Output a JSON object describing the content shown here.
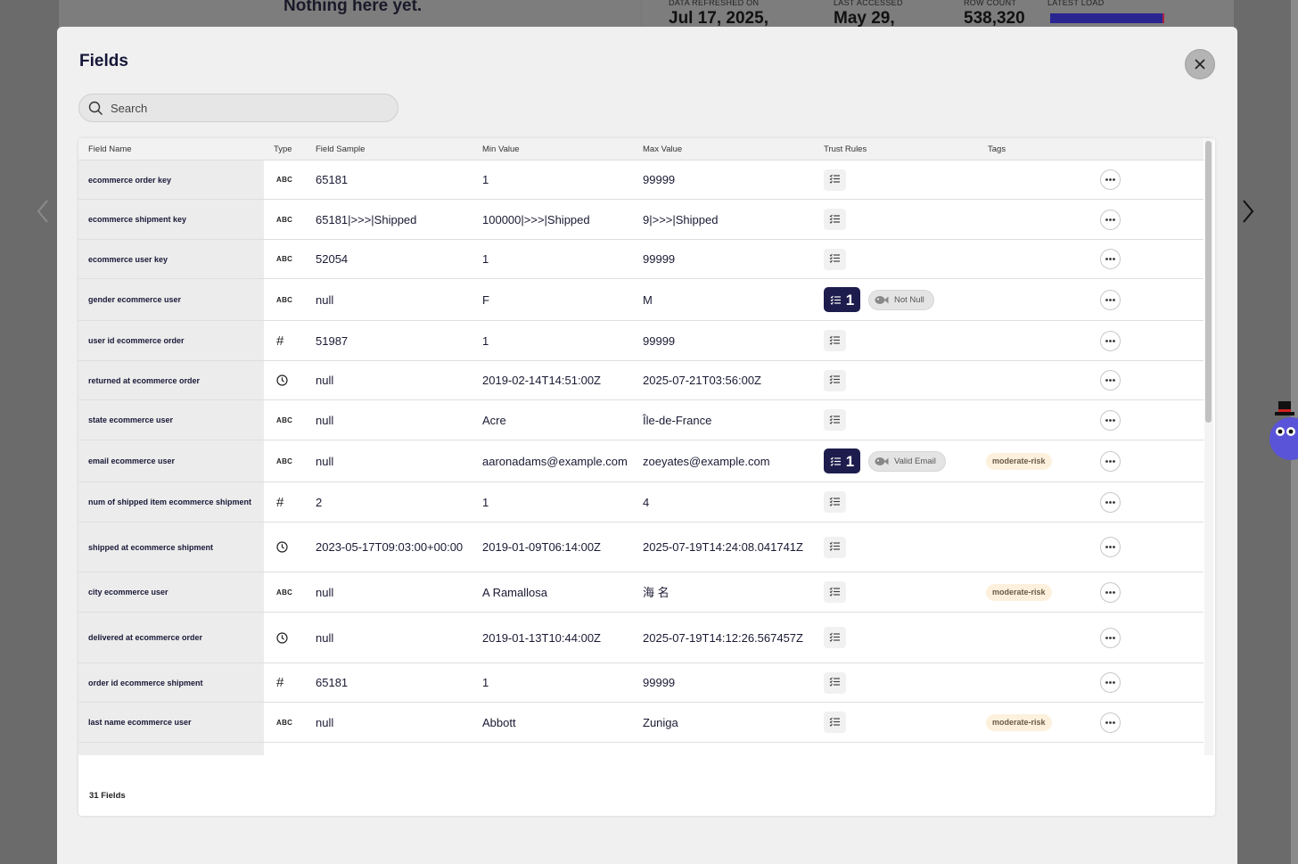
{
  "background": {
    "empty_message": "Nothing here yet.",
    "stats": [
      {
        "label": "DATA REFRESHED ON",
        "value": "Jul 17, 2025,"
      },
      {
        "label": "LAST ACCESSED",
        "value": "May 29,"
      },
      {
        "label": "ROW COUNT",
        "value": "538,320"
      },
      {
        "label": "LATEST LOAD",
        "value": ""
      }
    ]
  },
  "modal": {
    "title": "Fields",
    "search_placeholder": "Search",
    "columns": [
      "Field Name",
      "Type",
      "Field Sample",
      "Min Value",
      "Max Value",
      "Trust Rules",
      "Tags"
    ],
    "rows": [
      {
        "name": "ecommerce order key",
        "type": "ABC",
        "sample": "65181",
        "min": "1",
        "max": "99999",
        "rule_count": "",
        "rule_label": "",
        "tag": ""
      },
      {
        "name": "ecommerce shipment key",
        "type": "ABC",
        "sample": "65181|>>>|Shipped",
        "min": "100000|>>>|Shipped",
        "max": "9|>>>|Shipped",
        "rule_count": "",
        "rule_label": "",
        "tag": ""
      },
      {
        "name": "ecommerce user key",
        "type": "ABC",
        "sample": "52054",
        "min": "1",
        "max": "99999",
        "rule_count": "",
        "rule_label": "",
        "tag": ""
      },
      {
        "name": "gender ecommerce user",
        "type": "ABC",
        "sample": "null",
        "min": "F",
        "max": "M",
        "rule_count": "1",
        "rule_label": "Not Null",
        "tag": ""
      },
      {
        "name": "user id ecommerce order",
        "type": "#",
        "sample": "51987",
        "min": "1",
        "max": "99999",
        "rule_count": "",
        "rule_label": "",
        "tag": ""
      },
      {
        "name": "returned at ecommerce order",
        "type": "clock",
        "sample": "null",
        "min": "2019-02-14T14:51:00Z",
        "max": "2025-07-21T03:56:00Z",
        "rule_count": "",
        "rule_label": "",
        "tag": ""
      },
      {
        "name": "state ecommerce user",
        "type": "ABC",
        "sample": "null",
        "min": "Acre",
        "max": "Île-de-France",
        "rule_count": "",
        "rule_label": "",
        "tag": ""
      },
      {
        "name": "email ecommerce user",
        "type": "ABC",
        "sample": "null",
        "min": "aaronadams@example.com",
        "max": "zoeyates@example.com",
        "rule_count": "1",
        "rule_label": "Valid Email",
        "tag": "moderate-risk"
      },
      {
        "name": "num of shipped item ecommerce shipment",
        "type": "#",
        "sample": "2",
        "min": "1",
        "max": "4",
        "rule_count": "",
        "rule_label": "",
        "tag": ""
      },
      {
        "name": "shipped at ecommerce shipment",
        "type": "clock",
        "sample": "2023-05-17T09:03:00+00:00",
        "min": "2019-01-09T06:14:00Z",
        "max": "2025-07-19T14:24:08.041741Z",
        "rule_count": "",
        "rule_label": "",
        "tag": ""
      },
      {
        "name": "city ecommerce user",
        "type": "ABC",
        "sample": "null",
        "min": "A Ramallosa",
        "max": "海 名",
        "rule_count": "",
        "rule_label": "",
        "tag": "moderate-risk"
      },
      {
        "name": "delivered at ecommerce order",
        "type": "clock",
        "sample": "null",
        "min": "2019-01-13T10:44:00Z",
        "max": "2025-07-19T14:12:26.567457Z",
        "rule_count": "",
        "rule_label": "",
        "tag": ""
      },
      {
        "name": "order id ecommerce shipment",
        "type": "#",
        "sample": "65181",
        "min": "1",
        "max": "99999",
        "rule_count": "",
        "rule_label": "",
        "tag": ""
      },
      {
        "name": "last name ecommerce user",
        "type": "ABC",
        "sample": "null",
        "min": "Abbott",
        "max": "Zuniga",
        "rule_count": "",
        "rule_label": "",
        "tag": "moderate-risk"
      }
    ],
    "field_count": "31 Fields"
  },
  "colors": {
    "rule_dark": "#1d1d4d",
    "tag_bg": "#fdf1dd",
    "modal_bg": "#f0f0f0"
  },
  "icons": [
    "search-icon",
    "close-icon",
    "checklist-icon",
    "more-icon",
    "clock-icon",
    "chevron-left-icon",
    "chevron-right-icon"
  ]
}
